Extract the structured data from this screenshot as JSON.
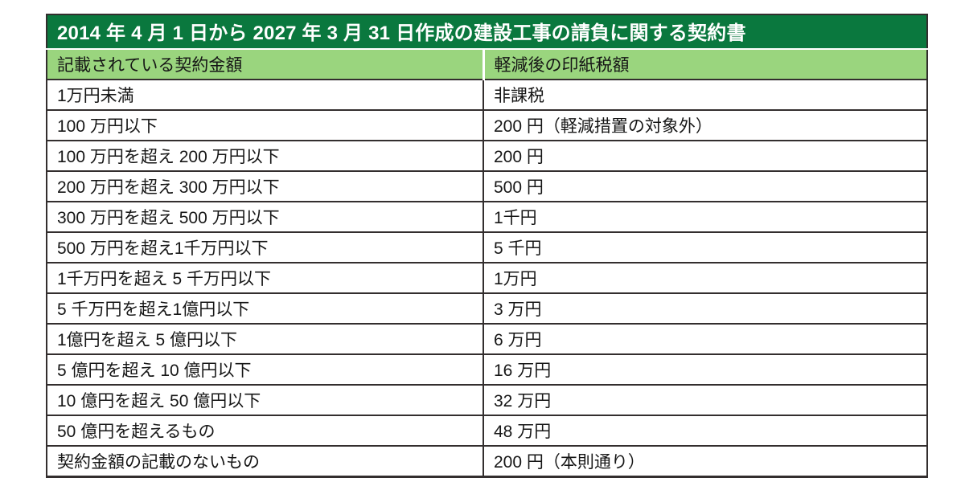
{
  "table": {
    "title": "2014 年 4 月 1 日から 2027 年 3 月 31 日作成の建設工事の請負に関する契約書",
    "columns": [
      "記載されている契約金額",
      "軽減後の印紙税額"
    ],
    "rows": [
      [
        "1万円未満",
        "非課税"
      ],
      [
        "100 万円以下",
        "200 円（軽減措置の対象外）"
      ],
      [
        "100 万円を超え 200 万円以下",
        "200 円"
      ],
      [
        "200 万円を超え 300 万円以下",
        "500 円"
      ],
      [
        "300 万円を超え 500 万円以下",
        "1千円"
      ],
      [
        "500 万円を超え1千万円以下",
        "5 千円"
      ],
      [
        "1千万円を超え 5 千万円以下",
        "1万円"
      ],
      [
        "5 千万円を超え1億円以下",
        "3 万円"
      ],
      [
        "1億円を超え 5 億円以下",
        "6 万円"
      ],
      [
        "5 億円を超え 10 億円以下",
        "16 万円"
      ],
      [
        "10 億円を超え 50 億円以下",
        "32 万円"
      ],
      [
        "50 億円を超えるもの",
        "48 万円"
      ],
      [
        "契約金額の記載のないもの",
        "200 円（本則通り）"
      ]
    ],
    "colors": {
      "title_bg": "#0a783e",
      "title_text": "#ffffff",
      "header_bg": "#9ad57e",
      "body_text": "#161616",
      "border": "#332e2e"
    }
  }
}
